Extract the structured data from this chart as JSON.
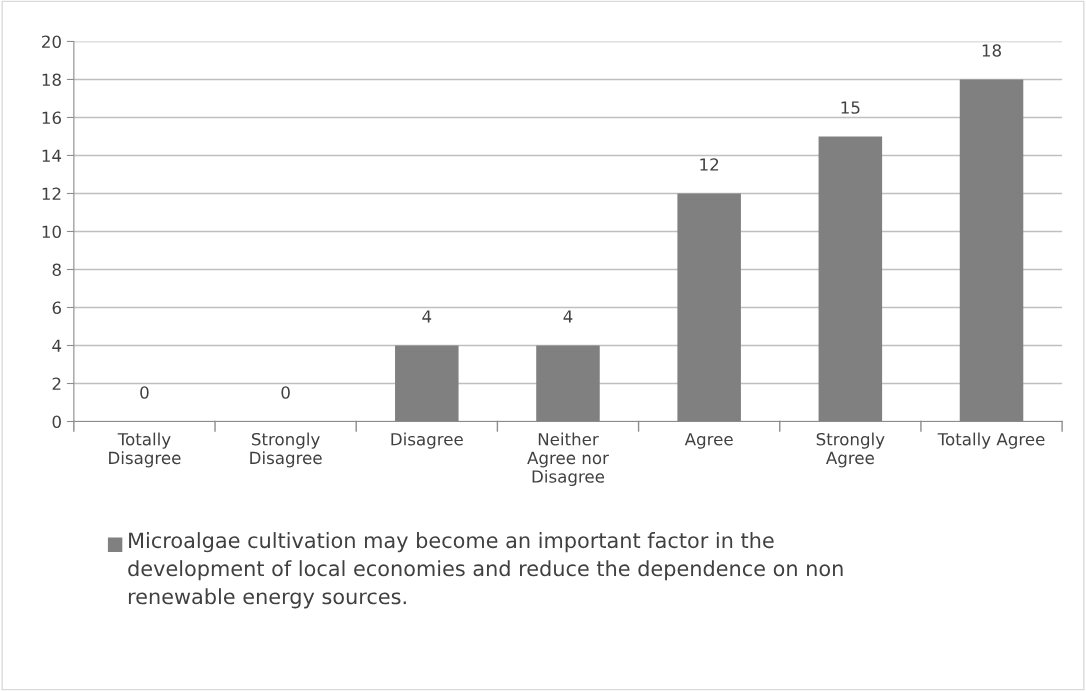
{
  "chart_data": {
    "type": "bar",
    "categories": [
      "Totally Disagree",
      "Strongly Disagree",
      "Disagree",
      "Neither Agree nor Disagree",
      "Agree",
      "Strongly Agree",
      "Totally Agree"
    ],
    "series": [
      {
        "name": "Microalgae cultivation may become an important factor in the development of local economies and reduce the dependence on non renewable energy sources.",
        "color": "#808080",
        "values": [
          0,
          0,
          4,
          4,
          12,
          15,
          18
        ]
      }
    ],
    "ylim": [
      0,
      20
    ],
    "yticks": [
      0,
      2,
      4,
      6,
      8,
      10,
      12,
      14,
      16,
      18,
      20
    ],
    "grid": "y",
    "data_labels": true,
    "legend": "bottom"
  }
}
